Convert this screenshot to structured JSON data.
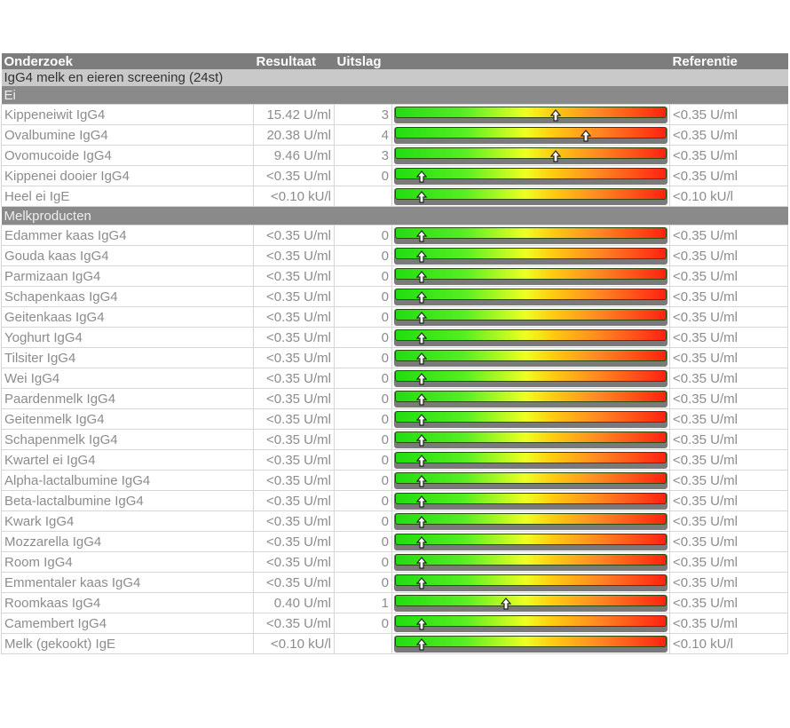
{
  "header": {
    "col_name": "Onderzoek",
    "col_result": "Resultaat",
    "col_outcome": "Uitslag",
    "col_reference": "Referentie"
  },
  "panel_title": "IgG4 melk en eieren screening (24st)",
  "colors": {
    "header_bg": "#7d7d7d",
    "group_bg": "#c9c9c9",
    "subgroup_bg": "#8a8a8a",
    "scale_low": "#22dd11",
    "scale_mid": "#eeff22",
    "scale_high": "#ff2211"
  },
  "groups": [
    {
      "name": "Ei",
      "rows": [
        {
          "name": "Kippeneiwit IgG4",
          "result": "15.42 U/ml",
          "class": "3",
          "level_pct": 59,
          "reference": "<0.35 U/ml"
        },
        {
          "name": "Ovalbumine IgG4",
          "result": "20.38 U/ml",
          "class": "4",
          "level_pct": 70,
          "reference": "<0.35 U/ml"
        },
        {
          "name": "Ovomucoide IgG4",
          "result": "9.46 U/ml",
          "class": "3",
          "level_pct": 59,
          "reference": "<0.35 U/ml"
        },
        {
          "name": "Kippenei dooier IgG4",
          "result": "<0.35 U/ml",
          "class": "0",
          "level_pct": 10,
          "reference": "<0.35 U/ml"
        },
        {
          "name": "Heel ei IgE",
          "result": "<0.10 kU/l",
          "class": "",
          "level_pct": 10,
          "reference": "<0.10 kU/l"
        }
      ]
    },
    {
      "name": "Melkproducten",
      "rows": [
        {
          "name": "Edammer kaas IgG4",
          "result": "<0.35 U/ml",
          "class": "0",
          "level_pct": 10,
          "reference": "<0.35 U/ml"
        },
        {
          "name": "Gouda kaas IgG4",
          "result": "<0.35 U/ml",
          "class": "0",
          "level_pct": 10,
          "reference": "<0.35 U/ml"
        },
        {
          "name": "Parmizaan IgG4",
          "result": "<0.35 U/ml",
          "class": "0",
          "level_pct": 10,
          "reference": "<0.35 U/ml"
        },
        {
          "name": "Schapenkaas IgG4",
          "result": "<0.35 U/ml",
          "class": "0",
          "level_pct": 10,
          "reference": "<0.35 U/ml"
        },
        {
          "name": "Geitenkaas IgG4",
          "result": "<0.35 U/ml",
          "class": "0",
          "level_pct": 10,
          "reference": "<0.35 U/ml"
        },
        {
          "name": "Yoghurt IgG4",
          "result": "<0.35 U/ml",
          "class": "0",
          "level_pct": 10,
          "reference": "<0.35 U/ml"
        },
        {
          "name": "Tilsiter IgG4",
          "result": "<0.35 U/ml",
          "class": "0",
          "level_pct": 10,
          "reference": "<0.35 U/ml"
        },
        {
          "name": "Wei IgG4",
          "result": "<0.35 U/ml",
          "class": "0",
          "level_pct": 10,
          "reference": "<0.35 U/ml"
        },
        {
          "name": "Paardenmelk IgG4",
          "result": "<0.35 U/ml",
          "class": "0",
          "level_pct": 10,
          "reference": "<0.35 U/ml"
        },
        {
          "name": "Geitenmelk IgG4",
          "result": "<0.35 U/ml",
          "class": "0",
          "level_pct": 10,
          "reference": "<0.35 U/ml"
        },
        {
          "name": "Schapenmelk IgG4",
          "result": "<0.35 U/ml",
          "class": "0",
          "level_pct": 10,
          "reference": "<0.35 U/ml"
        },
        {
          "name": "Kwartel ei IgG4",
          "result": "<0.35 U/ml",
          "class": "0",
          "level_pct": 10,
          "reference": "<0.35 U/ml"
        },
        {
          "name": "Alpha-lactalbumine IgG4",
          "result": "<0.35 U/ml",
          "class": "0",
          "level_pct": 10,
          "reference": "<0.35 U/ml"
        },
        {
          "name": "Beta-lactalbumine IgG4",
          "result": "<0.35 U/ml",
          "class": "0",
          "level_pct": 10,
          "reference": "<0.35 U/ml"
        },
        {
          "name": "Kwark IgG4",
          "result": "<0.35 U/ml",
          "class": "0",
          "level_pct": 10,
          "reference": "<0.35 U/ml"
        },
        {
          "name": "Mozzarella IgG4",
          "result": "<0.35 U/ml",
          "class": "0",
          "level_pct": 10,
          "reference": "<0.35 U/ml"
        },
        {
          "name": "Room IgG4",
          "result": "<0.35 U/ml",
          "class": "0",
          "level_pct": 10,
          "reference": "<0.35 U/ml"
        },
        {
          "name": "Emmentaler kaas IgG4",
          "result": "<0.35 U/ml",
          "class": "0",
          "level_pct": 10,
          "reference": "<0.35 U/ml"
        },
        {
          "name": "Roomkaas IgG4",
          "result": "0.40 U/ml",
          "class": "1",
          "level_pct": 41,
          "reference": "<0.35 U/ml"
        },
        {
          "name": "Camembert IgG4",
          "result": "<0.35 U/ml",
          "class": "0",
          "level_pct": 10,
          "reference": "<0.35 U/ml"
        },
        {
          "name": "Melk (gekookt) IgE",
          "result": "<0.10 kU/l",
          "class": "",
          "level_pct": 10,
          "reference": "<0.10 kU/l"
        }
      ]
    }
  ]
}
